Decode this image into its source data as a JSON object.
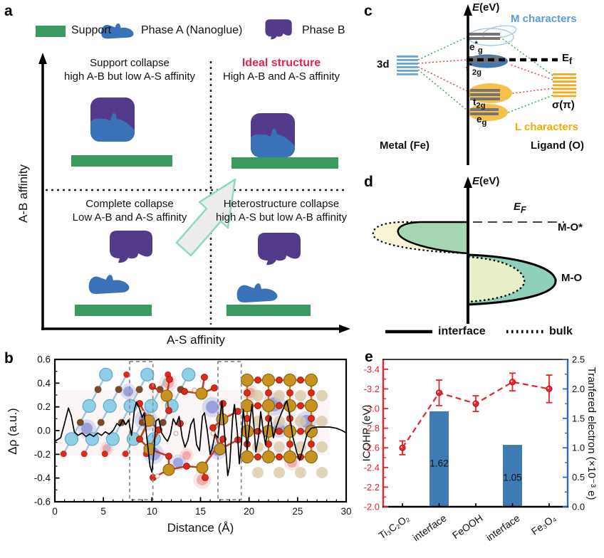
{
  "panels": {
    "a": {
      "label": "a",
      "legend": [
        {
          "name": "Support"
        },
        {
          "name": "Phase A (Nanoglue)"
        },
        {
          "name": "Phase B"
        }
      ],
      "quadrants": {
        "top_left": {
          "line1": "Support collapse",
          "line2": "high A-B but low A-S affinity"
        },
        "top_right": {
          "line1": "Ideal structure",
          "line2": "High A-B and A-S affinity"
        },
        "bottom_left": {
          "line1": "Complete collapse",
          "line2": "Low A-B and A-S affinity"
        },
        "bottom_right": {
          "line1": "Heterostructure collapse",
          "line2": "high A-S but low A-B affinity"
        }
      },
      "xlabel": "A-S affinity",
      "ylabel": "A-B affinity",
      "colors": {
        "support": "#3b9a5f",
        "phaseA": "#3a72b8",
        "phaseB": "#543a8a",
        "ideal": "#e2244e"
      }
    },
    "b": {
      "label": "b"
    },
    "c": {
      "label": "c",
      "axis_label": "*E*(eV)",
      "m_characters": "M characters",
      "l_characters": "L characters",
      "levels": {
        "eg_star": "e^{*}_{g}",
        "t2g_star": "t^{*}_{2g}",
        "t2g": "t_{2g}",
        "eg": "e_{g}"
      },
      "metal_levels": "3d",
      "ligand_levels": "σ(π)",
      "fermi": "E_{f}",
      "metal": "Metal (Fe)",
      "ligand": "Ligand (O)",
      "colors": {
        "m": "#5b9bd5",
        "l": "#f2ae00",
        "metal_stripes": "#6aa5d8",
        "ligand_stripes": "#f5a81c"
      }
    },
    "d": {
      "label": "d",
      "axis_label": "*E*(eV)",
      "fermi": "E_{F}",
      "antibonding": "M-O*",
      "bonding": "M-O",
      "legend_solid": "interface",
      "legend_dotted": "bulk"
    },
    "e": {
      "label": "e"
    }
  },
  "chart_data": [
    {
      "panel": "b",
      "type": "line",
      "xlabel": "Distance (Å)",
      "ylabel": "Δρ (a.u.)",
      "xlim": [
        0,
        30
      ],
      "ylim": [
        -0.6,
        0.6
      ],
      "xticks": [
        0,
        5,
        10,
        15,
        20,
        25,
        30
      ],
      "yticks": [
        0.6,
        0.4,
        0.2,
        0.0,
        -0.2,
        -0.4,
        -0.6
      ],
      "grid": false,
      "highlight_regions_angstrom": [
        [
          7.7,
          10.1
        ],
        [
          16.8,
          19.2
        ]
      ],
      "series": [
        {
          "name": "charge density difference",
          "color": "#000000",
          "points": [
            [
              0,
              -0.09
            ],
            [
              0.6,
              -0.06
            ],
            [
              1.0,
              0.06
            ],
            [
              1.4,
              0.19
            ],
            [
              1.7,
              0.12
            ],
            [
              2.0,
              -0.01
            ],
            [
              2.4,
              -0.04
            ],
            [
              2.8,
              -0.02
            ],
            [
              3.2,
              -0.05
            ],
            [
              3.6,
              -0.03
            ],
            [
              4.0,
              -0.05
            ],
            [
              4.4,
              -0.02
            ],
            [
              4.8,
              -0.04
            ],
            [
              5.2,
              -0.01
            ],
            [
              5.6,
              -0.03
            ],
            [
              6.0,
              0.0
            ],
            [
              6.4,
              0.06
            ],
            [
              6.7,
              0.04
            ],
            [
              7.0,
              0.09
            ],
            [
              7.3,
              0.05
            ],
            [
              7.6,
              0.09
            ],
            [
              7.9,
              -0.04
            ],
            [
              8.2,
              0.18
            ],
            [
              8.4,
              0.24
            ],
            [
              8.7,
              0.19
            ],
            [
              9.0,
              0.11
            ],
            [
              9.2,
              0.15
            ],
            [
              9.5,
              -0.08
            ],
            [
              9.8,
              -0.3
            ],
            [
              10.0,
              -0.35
            ],
            [
              10.2,
              -0.18
            ],
            [
              10.4,
              0.08
            ],
            [
              10.7,
              0.1
            ],
            [
              11.0,
              -0.02
            ],
            [
              11.3,
              -0.06
            ],
            [
              11.6,
              -0.09
            ],
            [
              11.9,
              -0.03
            ],
            [
              12.2,
              0.1
            ],
            [
              12.5,
              0.05
            ],
            [
              12.8,
              0.12
            ],
            [
              13.1,
              -0.05
            ],
            [
              13.4,
              -0.14
            ],
            [
              13.7,
              -0.08
            ],
            [
              14.0,
              0.05
            ],
            [
              14.3,
              0.1
            ],
            [
              14.6,
              -0.12
            ],
            [
              14.9,
              -0.17
            ],
            [
              15.2,
              0.12
            ],
            [
              15.4,
              0.15
            ],
            [
              15.7,
              0.0
            ],
            [
              16.0,
              -0.2
            ],
            [
              16.2,
              -0.15
            ],
            [
              16.5,
              -0.03
            ],
            [
              16.8,
              -0.06
            ],
            [
              17.0,
              0.1
            ],
            [
              17.2,
              0.25
            ],
            [
              17.5,
              -0.05
            ],
            [
              17.8,
              -0.38
            ],
            [
              18.0,
              -0.3
            ],
            [
              18.3,
              0.1
            ],
            [
              18.5,
              0.22
            ],
            [
              18.8,
              -0.02
            ],
            [
              19.0,
              -0.28
            ],
            [
              19.2,
              -0.12
            ],
            [
              19.4,
              0.18
            ],
            [
              19.6,
              0.04
            ],
            [
              19.8,
              -0.16
            ],
            [
              20.1,
              0.08
            ],
            [
              20.3,
              0.22
            ],
            [
              20.5,
              0.04
            ],
            [
              20.7,
              -0.18
            ],
            [
              21.0,
              -0.04
            ],
            [
              21.2,
              0.16
            ],
            [
              21.5,
              -0.02
            ],
            [
              21.7,
              -0.12
            ],
            [
              22.0,
              0.06
            ],
            [
              22.2,
              0.12
            ],
            [
              22.5,
              -0.06
            ],
            [
              22.8,
              0.03
            ],
            [
              23.1,
              0.1
            ],
            [
              23.4,
              0.16
            ],
            [
              23.7,
              0.22
            ],
            [
              23.9,
              0.25
            ],
            [
              24.2,
              0.12
            ],
            [
              24.5,
              -0.05
            ],
            [
              24.9,
              -0.18
            ],
            [
              25.2,
              -0.25
            ],
            [
              25.6,
              -0.14
            ],
            [
              26.0,
              -0.02
            ],
            [
              26.4,
              0.02
            ],
            [
              27.0,
              0.03
            ],
            [
              27.6,
              0.03
            ],
            [
              28.3,
              0.03
            ],
            [
              29.0,
              0.02
            ],
            [
              29.6,
              0.0
            ],
            [
              30,
              -0.02
            ]
          ]
        }
      ]
    },
    {
      "panel": "e",
      "type": "bar+line",
      "categories": [
        "Ti₃C₂O₂",
        "interface",
        "FeOOH",
        "interface",
        "Fe₃O₄"
      ],
      "left_axis": {
        "label": "ICOHP (eV)",
        "color": "#e8232d",
        "min": -2.0,
        "max": -3.5,
        "inverted": true,
        "ticks": [
          -2.0,
          -2.2,
          -2.4,
          -2.6,
          -2.8,
          -3.0,
          -3.2,
          -3.4
        ]
      },
      "right_axis": {
        "label": "Tranfered electron (×10⁻³ e)",
        "color": "#2e6db4",
        "min": 0.0,
        "max": 2.5,
        "ticks": [
          0.0,
          0.5,
          1.0,
          1.5,
          2.0,
          2.5
        ]
      },
      "bars": {
        "name": "Tranfered electron",
        "axis": "right",
        "color": "#3f7cb6",
        "values": [
          null,
          1.62,
          null,
          1.05,
          null
        ]
      },
      "line": {
        "name": "ICOHP",
        "axis": "left",
        "color": "#e8232d",
        "style": "dashed",
        "values": [
          -2.6,
          -3.16,
          -3.05,
          -3.27,
          -3.2
        ],
        "errors": [
          0.07,
          0.13,
          0.08,
          0.09,
          0.14
        ]
      }
    }
  ]
}
